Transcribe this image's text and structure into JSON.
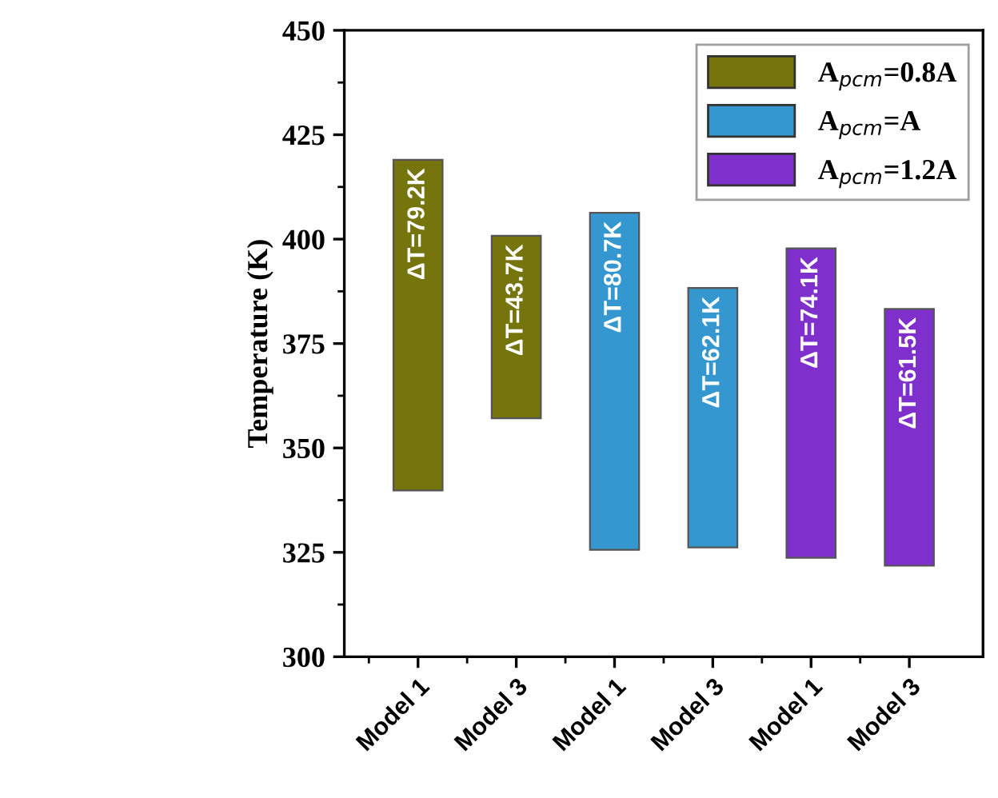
{
  "chart_data": {
    "type": "bar",
    "ylabel": "Temperature (K)",
    "categories": [
      "Model 1",
      "Model 3",
      "Model 1",
      "Model 3",
      "Model 1",
      "Model 3"
    ],
    "series": [
      {
        "name": "A$_{pcm}$=0.8A",
        "color": "#76740c",
        "values": [
          79.2,
          43.7,
          null,
          null,
          null,
          null
        ],
        "base": [
          339.8,
          357.1,
          null,
          null,
          null,
          null
        ],
        "value_labels": [
          "ΔT=79.2K",
          "ΔT=43.7K",
          null,
          null,
          null,
          null
        ]
      },
      {
        "name": "A$_{pcm}$=A",
        "color": "#3597cf",
        "values": [
          null,
          null,
          80.7,
          62.1,
          null,
          null
        ],
        "base": [
          null,
          null,
          325.6,
          326.2,
          null,
          null
        ],
        "value_labels": [
          null,
          null,
          "ΔT=80.7K",
          "ΔT=62.1K",
          null,
          null
        ]
      },
      {
        "name": "A$_{pcm}$=1.2A",
        "color": "#7f30cc",
        "values": [
          null,
          null,
          null,
          null,
          74.1,
          61.5
        ],
        "base": [
          null,
          null,
          null,
          null,
          323.7,
          321.8
        ],
        "value_labels": [
          null,
          null,
          null,
          null,
          "ΔT=74.1K",
          "ΔT=61.5K"
        ]
      }
    ],
    "ylim": [
      300,
      450
    ],
    "yticks": [
      300,
      325,
      350,
      375,
      400,
      425,
      450
    ],
    "legend": "top right",
    "grid": false
  }
}
